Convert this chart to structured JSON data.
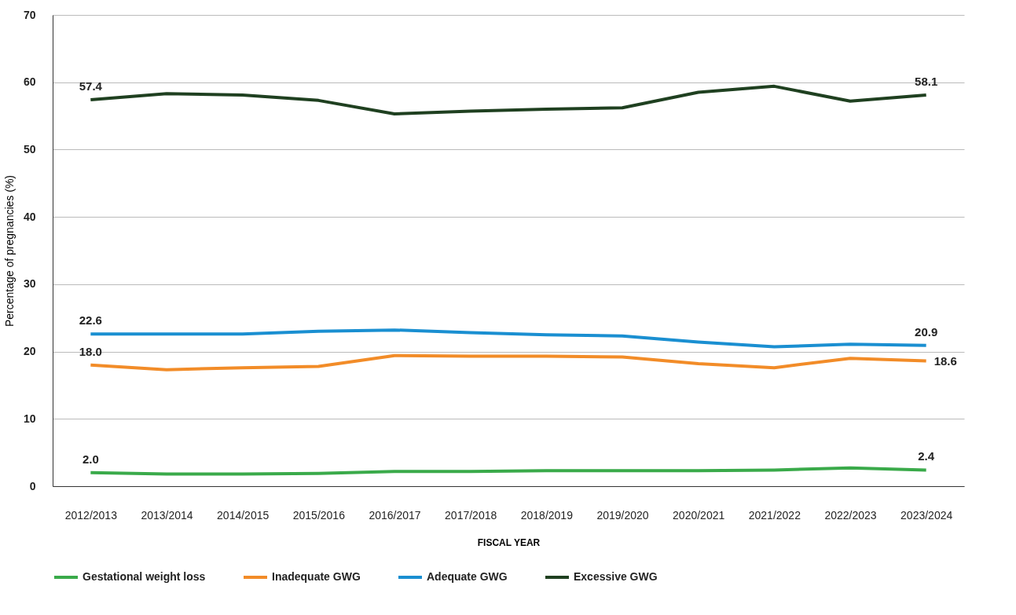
{
  "chart_data": {
    "type": "line",
    "xlabel": "FISCAL YEAR",
    "ylabel": "Percentage of pregnancies (%)",
    "categories": [
      "2012/2013",
      "2013/2014",
      "2014/2015",
      "2015/2016",
      "2016/2017",
      "2017/2018",
      "2018/2019",
      "2019/2020",
      "2020/2021",
      "2021/2022",
      "2022/2023",
      "2023/2024"
    ],
    "series": [
      {
        "name": "Gestational weight loss",
        "color": "#3aaa4a",
        "values": [
          2.0,
          1.8,
          1.8,
          1.9,
          2.2,
          2.2,
          2.3,
          2.3,
          2.3,
          2.4,
          2.7,
          2.4
        ],
        "value_labels": [
          "2.0",
          null,
          null,
          null,
          null,
          null,
          null,
          null,
          null,
          null,
          null,
          "2.4"
        ]
      },
      {
        "name": "Inadequate GWG",
        "color": "#f28c28",
        "values": [
          18.0,
          17.3,
          17.6,
          17.8,
          19.4,
          19.3,
          19.3,
          19.2,
          18.2,
          17.6,
          19.0,
          18.6
        ],
        "value_labels": [
          "18.0",
          null,
          null,
          null,
          null,
          null,
          null,
          null,
          null,
          null,
          null,
          "18.6"
        ]
      },
      {
        "name": "Adequate GWG",
        "color": "#1a8fd1",
        "values": [
          22.6,
          22.6,
          22.6,
          23.0,
          23.2,
          22.8,
          22.5,
          22.3,
          21.4,
          20.7,
          21.1,
          20.9
        ],
        "value_labels": [
          "22.6",
          null,
          null,
          null,
          null,
          null,
          null,
          null,
          null,
          null,
          null,
          "20.9"
        ]
      },
      {
        "name": "Excessive GWG",
        "color": "#1f4020",
        "values": [
          57.4,
          58.3,
          58.1,
          57.3,
          55.3,
          55.7,
          56.0,
          56.2,
          58.5,
          59.4,
          57.2,
          58.1
        ],
        "value_labels": [
          "57.4",
          null,
          null,
          null,
          null,
          null,
          null,
          null,
          null,
          null,
          null,
          "58.1"
        ]
      }
    ],
    "ylim": [
      0,
      70
    ],
    "yticks": [
      0,
      10,
      20,
      30,
      40,
      50,
      60,
      70
    ],
    "grid": "y",
    "legend": "bottom",
    "marker": "none",
    "line_style": "solid"
  }
}
